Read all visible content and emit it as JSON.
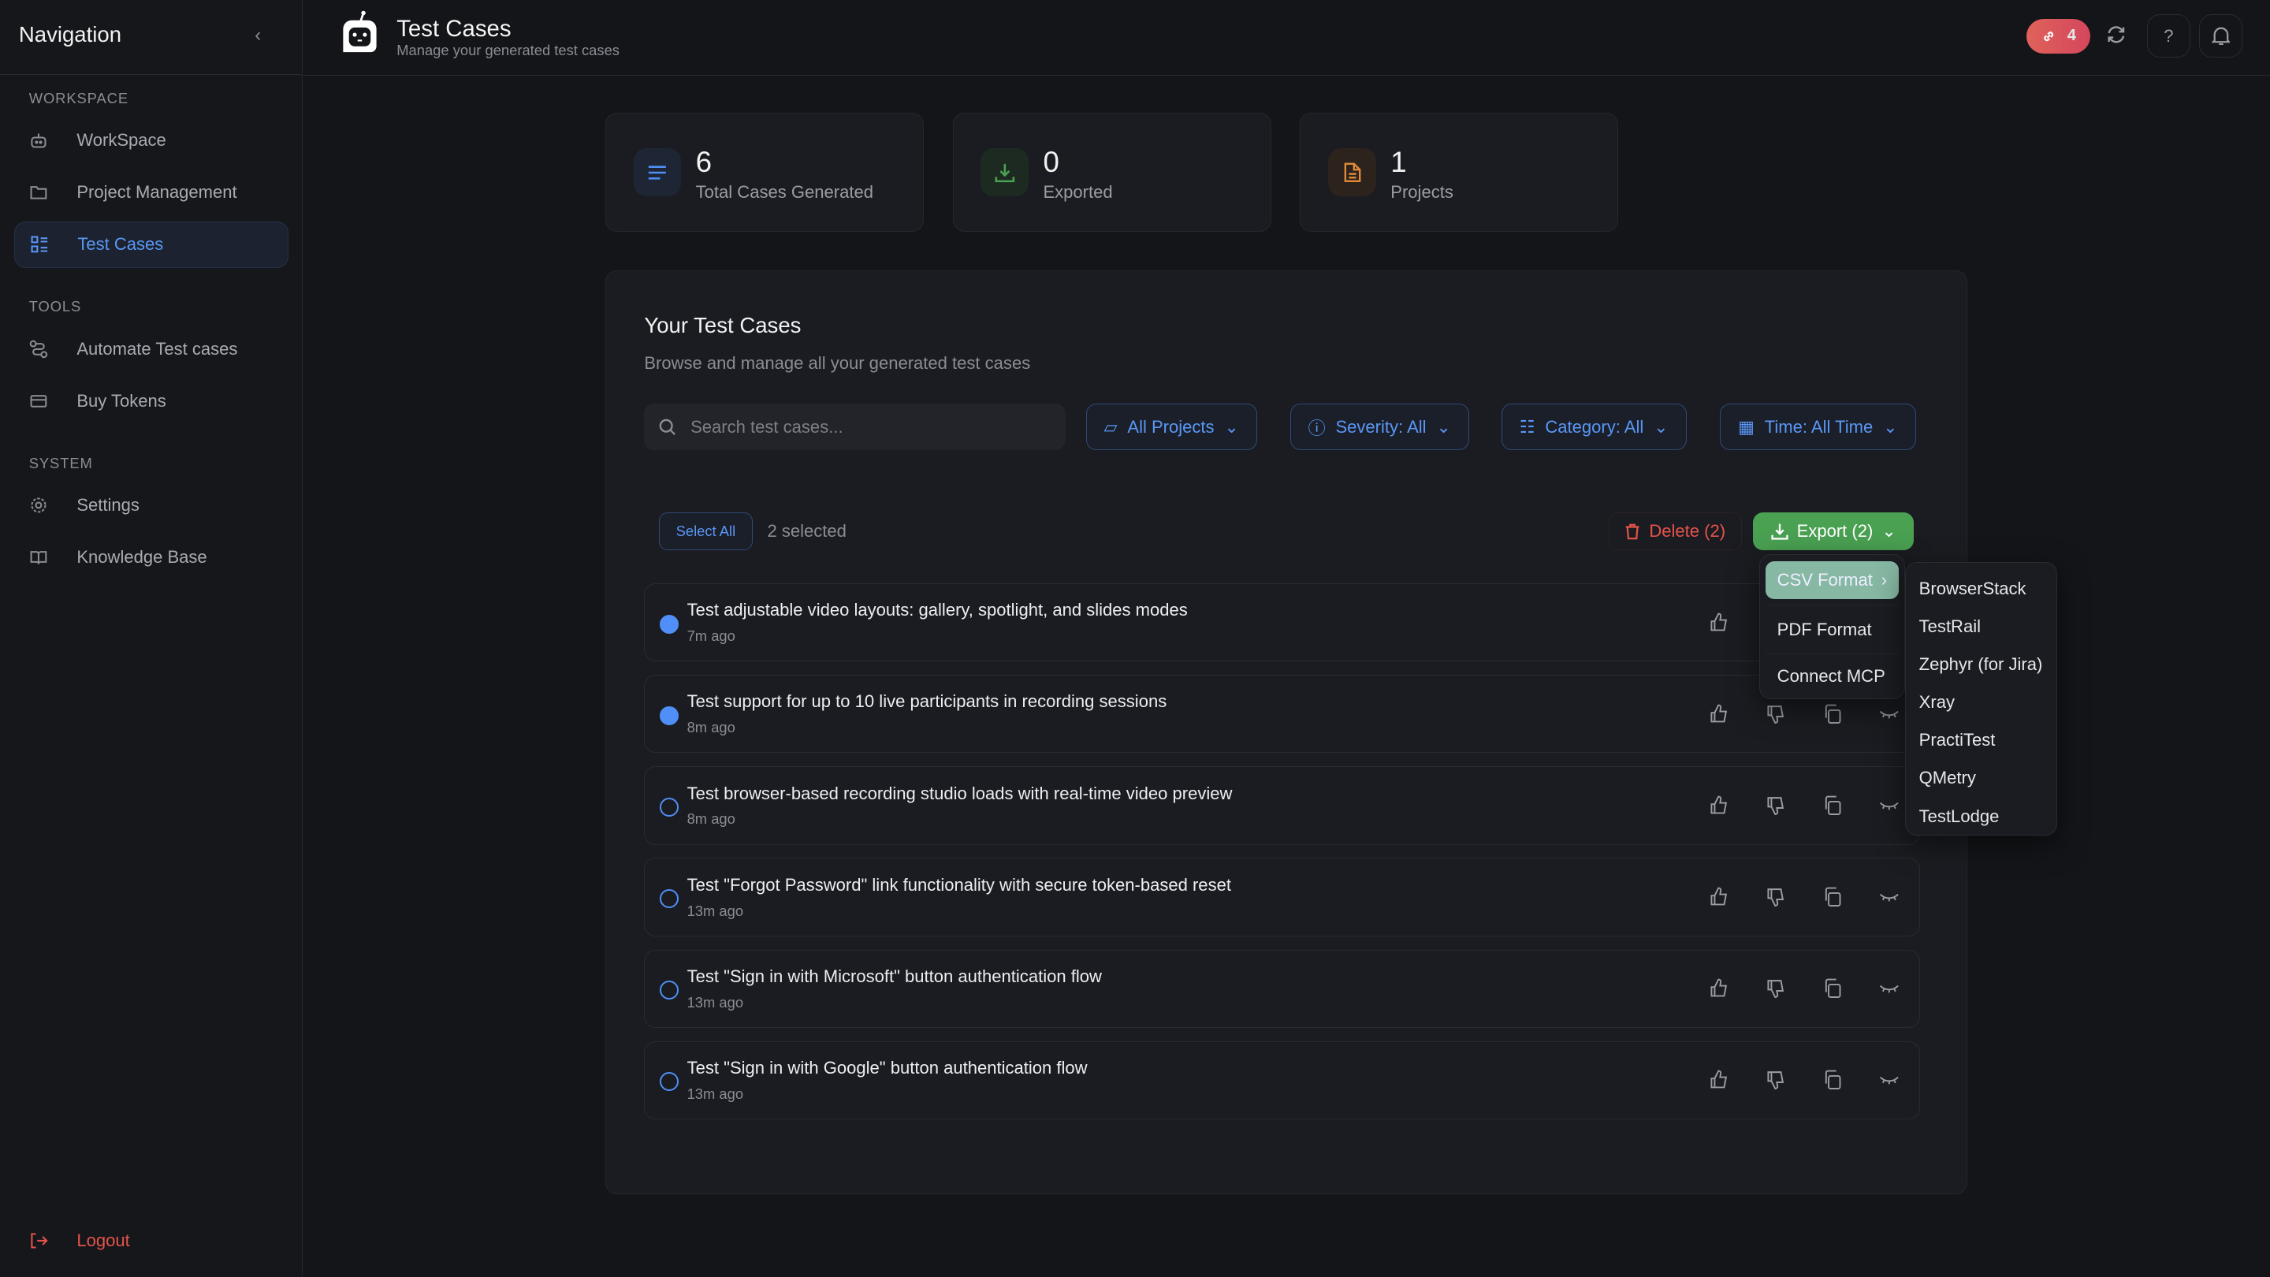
{
  "sidebar": {
    "title": "Navigation",
    "sections": [
      {
        "label": "WORKSPACE",
        "items": [
          {
            "label": "WorkSpace",
            "icon": "bot-icon"
          },
          {
            "label": "Project Management",
            "icon": "folder-icon"
          },
          {
            "label": "Test Cases",
            "icon": "list-icon",
            "active": true
          }
        ]
      },
      {
        "label": "TOOLS",
        "items": [
          {
            "label": "Automate Test cases",
            "icon": "route-icon"
          },
          {
            "label": "Buy Tokens",
            "icon": "card-icon"
          }
        ]
      },
      {
        "label": "SYSTEM",
        "items": [
          {
            "label": "Settings",
            "icon": "gear-icon"
          },
          {
            "label": "Knowledge Base",
            "icon": "book-icon"
          }
        ]
      }
    ],
    "logout": "Logout"
  },
  "header": {
    "title": "Test Cases",
    "subtitle": "Manage your generated test cases",
    "link_badge": "4"
  },
  "stats": [
    {
      "value": "6",
      "label": "Total Cases Generated"
    },
    {
      "value": "0",
      "label": "Exported"
    },
    {
      "value": "1",
      "label": "Projects"
    }
  ],
  "panel": {
    "title": "Your Test Cases",
    "subtitle": "Browse and manage all your generated test cases",
    "search_placeholder": "Search test cases...",
    "filters": [
      "All Projects",
      "Severity: All",
      "Category: All",
      "Time: All Time"
    ],
    "select_all": "Select All",
    "selected_count": "2 selected",
    "delete": "Delete (2)",
    "export": "Export (2)"
  },
  "export_menu": {
    "items": [
      "CSV Format",
      "PDF Format",
      "Connect MCP"
    ],
    "csv_submenu": [
      "BrowserStack",
      "TestRail",
      "Zephyr (for Jira)",
      "Xray",
      "PractiTest",
      "QMetry",
      "TestLodge"
    ]
  },
  "test_cases": [
    {
      "title": "Test adjustable video layouts: gallery, spotlight, and slides modes",
      "time": "7m ago",
      "selected": true
    },
    {
      "title": "Test support for up to 10 live participants in recording sessions",
      "time": "8m ago",
      "selected": true
    },
    {
      "title": "Test browser-based recording studio loads with real-time video preview",
      "time": "8m ago",
      "selected": false
    },
    {
      "title": "Test \"Forgot Password\" link functionality with secure token-based reset",
      "time": "13m ago",
      "selected": false
    },
    {
      "title": "Test \"Sign in with Microsoft\" button authentication flow",
      "time": "13m ago",
      "selected": false
    },
    {
      "title": "Test \"Sign in with Google\" button authentication flow",
      "time": "13m ago",
      "selected": false
    }
  ],
  "colors": {
    "accent": "#4f8ff7",
    "export": "#4aa152",
    "delete": "#e5534b",
    "badge": "#d9485a"
  }
}
